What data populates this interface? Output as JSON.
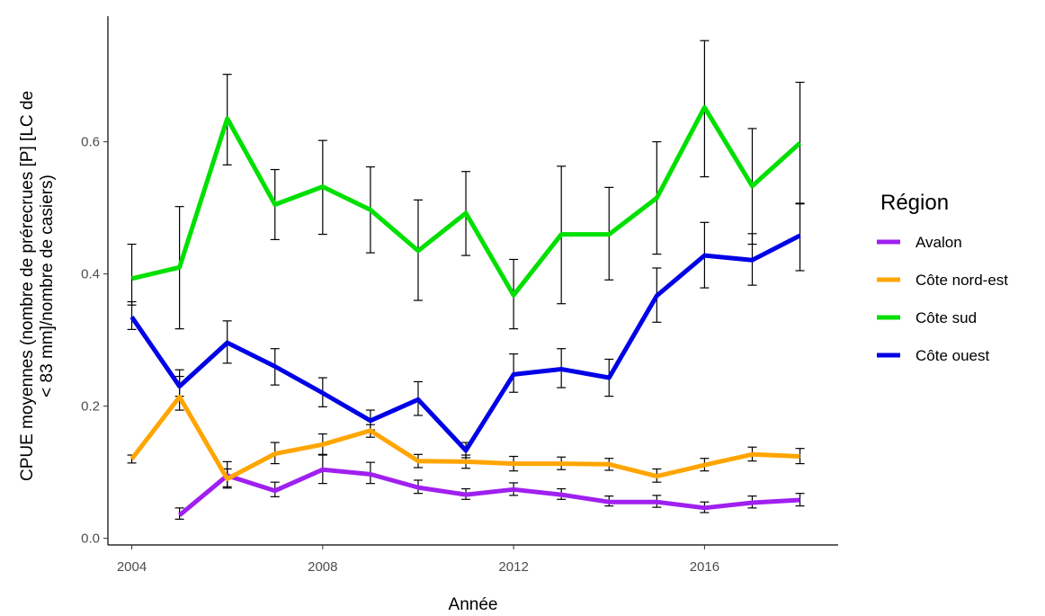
{
  "chart_data": {
    "type": "line",
    "xlabel": "Année",
    "ylabel": "CPUE moyennes (nombre de prérecrues [P] [LC de < 83 mm]/nombre de casiers)",
    "xlim": [
      2003.5,
      2018.8
    ],
    "ylim": [
      -0.01,
      0.79
    ],
    "x_ticks": [
      2004,
      2008,
      2012,
      2016
    ],
    "y_ticks": [
      0.0,
      0.2,
      0.4,
      0.6
    ],
    "y_tick_labels": [
      "0.0",
      "0.2",
      "0.4",
      "0.6"
    ],
    "grid": false,
    "legend": {
      "title": "Région",
      "position": "right"
    },
    "series": [
      {
        "name": "Avalon",
        "color": "#a020f0",
        "points": [
          {
            "x": 2005,
            "y": 0.035,
            "lo": 0.029,
            "hi": 0.046
          },
          {
            "x": 2006,
            "y": 0.095,
            "lo": 0.078,
            "hi": 0.116
          },
          {
            "x": 2007,
            "y": 0.072,
            "lo": 0.063,
            "hi": 0.085
          },
          {
            "x": 2008,
            "y": 0.104,
            "lo": 0.083,
            "hi": 0.127
          },
          {
            "x": 2009,
            "y": 0.097,
            "lo": 0.083,
            "hi": 0.115
          },
          {
            "x": 2010,
            "y": 0.077,
            "lo": 0.068,
            "hi": 0.088
          },
          {
            "x": 2011,
            "y": 0.066,
            "lo": 0.059,
            "hi": 0.075
          },
          {
            "x": 2012,
            "y": 0.074,
            "lo": 0.065,
            "hi": 0.084
          },
          {
            "x": 2013,
            "y": 0.066,
            "lo": 0.059,
            "hi": 0.075
          },
          {
            "x": 2014,
            "y": 0.055,
            "lo": 0.049,
            "hi": 0.064
          },
          {
            "x": 2015,
            "y": 0.055,
            "lo": 0.047,
            "hi": 0.065
          },
          {
            "x": 2016,
            "y": 0.046,
            "lo": 0.039,
            "hi": 0.055
          },
          {
            "x": 2017,
            "y": 0.054,
            "lo": 0.046,
            "hi": 0.064
          },
          {
            "x": 2018,
            "y": 0.058,
            "lo": 0.049,
            "hi": 0.068
          }
        ]
      },
      {
        "name": "Côte nord-est",
        "color": "#ffa500",
        "points": [
          {
            "x": 2004,
            "y": 0.12,
            "lo": 0.114,
            "hi": 0.126
          },
          {
            "x": 2005,
            "y": 0.214,
            "lo": 0.194,
            "hi": 0.255
          },
          {
            "x": 2006,
            "y": 0.09,
            "lo": 0.076,
            "hi": 0.105
          },
          {
            "x": 2007,
            "y": 0.128,
            "lo": 0.113,
            "hi": 0.145
          },
          {
            "x": 2008,
            "y": 0.142,
            "lo": 0.126,
            "hi": 0.158
          },
          {
            "x": 2009,
            "y": 0.163,
            "lo": 0.153,
            "hi": 0.172
          },
          {
            "x": 2010,
            "y": 0.117,
            "lo": 0.107,
            "hi": 0.127
          },
          {
            "x": 2011,
            "y": 0.116,
            "lo": 0.106,
            "hi": 0.126
          },
          {
            "x": 2012,
            "y": 0.113,
            "lo": 0.102,
            "hi": 0.124
          },
          {
            "x": 2013,
            "y": 0.113,
            "lo": 0.104,
            "hi": 0.123
          },
          {
            "x": 2014,
            "y": 0.112,
            "lo": 0.103,
            "hi": 0.121
          },
          {
            "x": 2015,
            "y": 0.094,
            "lo": 0.085,
            "hi": 0.105
          },
          {
            "x": 2016,
            "y": 0.111,
            "lo": 0.102,
            "hi": 0.121
          },
          {
            "x": 2017,
            "y": 0.127,
            "lo": 0.117,
            "hi": 0.138
          },
          {
            "x": 2018,
            "y": 0.124,
            "lo": 0.113,
            "hi": 0.136
          }
        ]
      },
      {
        "name": "Côte sud",
        "color": "#00e000",
        "points": [
          {
            "x": 2004,
            "y": 0.393,
            "lo": 0.353,
            "hi": 0.445
          },
          {
            "x": 2005,
            "y": 0.41,
            "lo": 0.317,
            "hi": 0.502
          },
          {
            "x": 2006,
            "y": 0.635,
            "lo": 0.565,
            "hi": 0.702
          },
          {
            "x": 2007,
            "y": 0.505,
            "lo": 0.452,
            "hi": 0.558
          },
          {
            "x": 2008,
            "y": 0.532,
            "lo": 0.46,
            "hi": 0.602
          },
          {
            "x": 2009,
            "y": 0.497,
            "lo": 0.432,
            "hi": 0.562
          },
          {
            "x": 2010,
            "y": 0.435,
            "lo": 0.36,
            "hi": 0.512
          },
          {
            "x": 2011,
            "y": 0.492,
            "lo": 0.428,
            "hi": 0.555
          },
          {
            "x": 2012,
            "y": 0.368,
            "lo": 0.317,
            "hi": 0.422
          },
          {
            "x": 2013,
            "y": 0.46,
            "lo": 0.355,
            "hi": 0.563
          },
          {
            "x": 2014,
            "y": 0.46,
            "lo": 0.391,
            "hi": 0.531
          },
          {
            "x": 2015,
            "y": 0.515,
            "lo": 0.43,
            "hi": 0.6
          },
          {
            "x": 2016,
            "y": 0.652,
            "lo": 0.547,
            "hi": 0.753
          },
          {
            "x": 2017,
            "y": 0.533,
            "lo": 0.445,
            "hi": 0.62
          },
          {
            "x": 2018,
            "y": 0.598,
            "lo": 0.506,
            "hi": 0.69
          }
        ]
      },
      {
        "name": "Côte ouest",
        "color": "#0000e6",
        "points": [
          {
            "x": 2004,
            "y": 0.335,
            "lo": 0.316,
            "hi": 0.358
          },
          {
            "x": 2005,
            "y": 0.23,
            "lo": 0.215,
            "hi": 0.245
          },
          {
            "x": 2006,
            "y": 0.296,
            "lo": 0.265,
            "hi": 0.329
          },
          {
            "x": 2007,
            "y": 0.26,
            "lo": 0.232,
            "hi": 0.287
          },
          {
            "x": 2008,
            "y": 0.22,
            "lo": 0.199,
            "hi": 0.243
          },
          {
            "x": 2009,
            "y": 0.178,
            "lo": 0.164,
            "hi": 0.194
          },
          {
            "x": 2010,
            "y": 0.21,
            "lo": 0.186,
            "hi": 0.237
          },
          {
            "x": 2011,
            "y": 0.133,
            "lo": 0.122,
            "hi": 0.145
          },
          {
            "x": 2012,
            "y": 0.248,
            "lo": 0.221,
            "hi": 0.279
          },
          {
            "x": 2013,
            "y": 0.256,
            "lo": 0.228,
            "hi": 0.287
          },
          {
            "x": 2014,
            "y": 0.243,
            "lo": 0.215,
            "hi": 0.271
          },
          {
            "x": 2015,
            "y": 0.367,
            "lo": 0.327,
            "hi": 0.409
          },
          {
            "x": 2016,
            "y": 0.428,
            "lo": 0.379,
            "hi": 0.478
          },
          {
            "x": 2017,
            "y": 0.421,
            "lo": 0.383,
            "hi": 0.461
          },
          {
            "x": 2018,
            "y": 0.458,
            "lo": 0.405,
            "hi": 0.507
          }
        ]
      }
    ]
  }
}
